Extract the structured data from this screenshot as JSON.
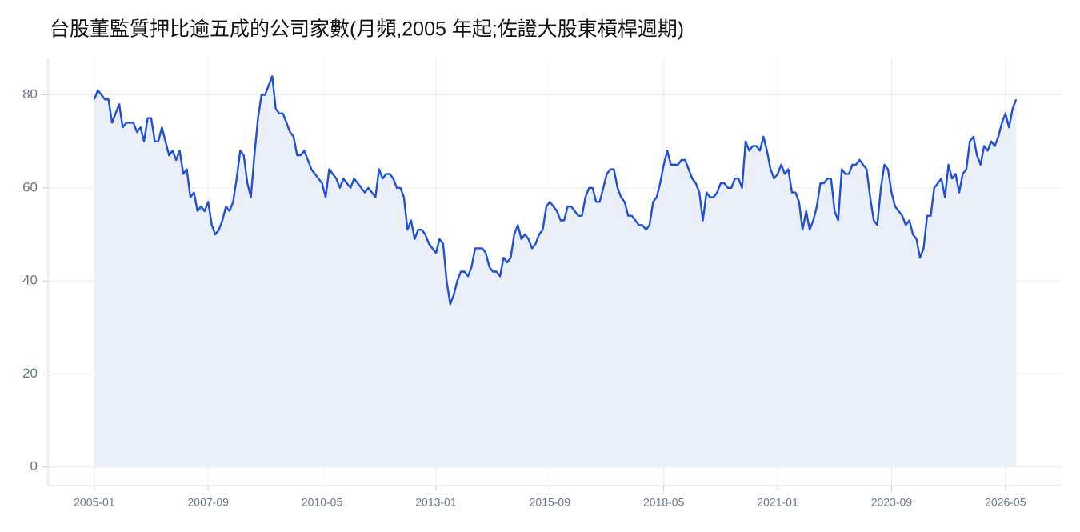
{
  "chart_data": {
    "type": "area",
    "title": "台股董監質押比逾五成的公司家數(月頻,2005 年起;佐證大股東槓桿週期)",
    "x": [
      "2005-01",
      "2005-02",
      "2005-03",
      "2005-04",
      "2005-05",
      "2005-06",
      "2005-07",
      "2005-08",
      "2005-09",
      "2005-10",
      "2005-11",
      "2005-12",
      "2006-01",
      "2006-02",
      "2006-03",
      "2006-04",
      "2006-05",
      "2006-06",
      "2006-07",
      "2006-08",
      "2006-09",
      "2006-10",
      "2006-11",
      "2006-12",
      "2007-01",
      "2007-02",
      "2007-03",
      "2007-04",
      "2007-05",
      "2007-06",
      "2007-07",
      "2007-08",
      "2007-09",
      "2007-10",
      "2007-11",
      "2007-12",
      "2008-01",
      "2008-02",
      "2008-03",
      "2008-04",
      "2008-05",
      "2008-06",
      "2008-07",
      "2008-08",
      "2008-09",
      "2008-10",
      "2008-11",
      "2008-12",
      "2009-01",
      "2009-02",
      "2009-03",
      "2009-04",
      "2009-05",
      "2009-06",
      "2009-07",
      "2009-08",
      "2009-09",
      "2009-10",
      "2009-11",
      "2009-12",
      "2010-01",
      "2010-02",
      "2010-03",
      "2010-04",
      "2010-05",
      "2010-06",
      "2010-07",
      "2010-08",
      "2010-09",
      "2010-10",
      "2010-11",
      "2010-12",
      "2011-01",
      "2011-02",
      "2011-03",
      "2011-04",
      "2011-05",
      "2011-06",
      "2011-07",
      "2011-08",
      "2011-09",
      "2011-10",
      "2011-11",
      "2011-12",
      "2012-01",
      "2012-02",
      "2012-03",
      "2012-04",
      "2012-05",
      "2012-06",
      "2012-07",
      "2012-08",
      "2012-09",
      "2012-10",
      "2012-11",
      "2012-12",
      "2013-01",
      "2013-02",
      "2013-03",
      "2013-04",
      "2013-05",
      "2013-06",
      "2013-07",
      "2013-08",
      "2013-09",
      "2013-10",
      "2013-11",
      "2013-12",
      "2014-01",
      "2014-02",
      "2014-03",
      "2014-04",
      "2014-05",
      "2014-06",
      "2014-07",
      "2014-08",
      "2014-09",
      "2014-10",
      "2014-11",
      "2014-12",
      "2015-01",
      "2015-02",
      "2015-03",
      "2015-04",
      "2015-05",
      "2015-06",
      "2015-07",
      "2015-08",
      "2015-09",
      "2015-10",
      "2015-11",
      "2015-12",
      "2016-01",
      "2016-02",
      "2016-03",
      "2016-04",
      "2016-05",
      "2016-06",
      "2016-07",
      "2016-08",
      "2016-09",
      "2016-10",
      "2016-11",
      "2016-12",
      "2017-01",
      "2017-02",
      "2017-03",
      "2017-04",
      "2017-05",
      "2017-06",
      "2017-07",
      "2017-08",
      "2017-09",
      "2017-10",
      "2017-11",
      "2017-12",
      "2018-01",
      "2018-02",
      "2018-03",
      "2018-04",
      "2018-05",
      "2018-06",
      "2018-07",
      "2018-08",
      "2018-09",
      "2018-10",
      "2018-11",
      "2018-12",
      "2019-01",
      "2019-02",
      "2019-03",
      "2019-04",
      "2019-05",
      "2019-06",
      "2019-07",
      "2019-08",
      "2019-09",
      "2019-10",
      "2019-11",
      "2019-12",
      "2020-01",
      "2020-02",
      "2020-03",
      "2020-04",
      "2020-05",
      "2020-06",
      "2020-07",
      "2020-08",
      "2020-09",
      "2020-10",
      "2020-11",
      "2020-12",
      "2021-01",
      "2021-02",
      "2021-03",
      "2021-04",
      "2021-05",
      "2021-06",
      "2021-07",
      "2021-08",
      "2021-09",
      "2021-10",
      "2021-11",
      "2021-12",
      "2022-01",
      "2022-02",
      "2022-03",
      "2022-04",
      "2022-05",
      "2022-06",
      "2022-07",
      "2022-08",
      "2022-09",
      "2022-10",
      "2022-11",
      "2022-12",
      "2023-01",
      "2023-02",
      "2023-03",
      "2023-04",
      "2023-05",
      "2023-06",
      "2023-07",
      "2023-08",
      "2023-09",
      "2023-10",
      "2023-11",
      "2023-12",
      "2024-01",
      "2024-02",
      "2024-03",
      "2024-04",
      "2024-05",
      "2024-06",
      "2024-07",
      "2024-08",
      "2024-09",
      "2024-10",
      "2024-11",
      "2024-12",
      "2025-01",
      "2025-02",
      "2025-03",
      "2025-04",
      "2025-05",
      "2025-06",
      "2025-07",
      "2025-08",
      "2025-09",
      "2025-10",
      "2025-11",
      "2025-12",
      "2026-01",
      "2026-02",
      "2026-03",
      "2026-04",
      "2026-05",
      "2026-06",
      "2026-07",
      "2026-08"
    ],
    "values": [
      79,
      81,
      80,
      79,
      79,
      74,
      76,
      78,
      73,
      74,
      74,
      74,
      72,
      73,
      70,
      75,
      75,
      70,
      70,
      73,
      70,
      67,
      68,
      66,
      68,
      63,
      64,
      58,
      59,
      55,
      56,
      55,
      57,
      52,
      50,
      51,
      53,
      56,
      55,
      57,
      62,
      68,
      67,
      61,
      58,
      67,
      75,
      80,
      80,
      82,
      84,
      77,
      76,
      76,
      74,
      72,
      71,
      67,
      67,
      68,
      66,
      64,
      63,
      62,
      61,
      58,
      64,
      63,
      62,
      60,
      62,
      61,
      60,
      62,
      61,
      60,
      59,
      60,
      59,
      58,
      64,
      62,
      63,
      63,
      62,
      60,
      60,
      58,
      51,
      53,
      49,
      51,
      51,
      50,
      48,
      47,
      46,
      49,
      48,
      40,
      35,
      37,
      40,
      42,
      42,
      41,
      43,
      47,
      47,
      47,
      46,
      43,
      42,
      42,
      41,
      45,
      44,
      45,
      50,
      52,
      49,
      50,
      49,
      47,
      48,
      50,
      51,
      56,
      57,
      56,
      55,
      53,
      53,
      56,
      56,
      55,
      54,
      54,
      58,
      60,
      60,
      57,
      57,
      60,
      63,
      64,
      64,
      60,
      58,
      57,
      54,
      54,
      53,
      52,
      52,
      51,
      52,
      57,
      58,
      61,
      65,
      68,
      65,
      65,
      65,
      66,
      66,
      64,
      62,
      61,
      59,
      53,
      59,
      58,
      58,
      59,
      61,
      61,
      60,
      60,
      62,
      62,
      60,
      70,
      68,
      69,
      69,
      68,
      71,
      68,
      64,
      62,
      63,
      65,
      63,
      64,
      59,
      59,
      57,
      51,
      55,
      51,
      53,
      56,
      61,
      61,
      62,
      62,
      55,
      53,
      64,
      63,
      63,
      65,
      65,
      66,
      65,
      64,
      58,
      53,
      52,
      60,
      65,
      64,
      59,
      56,
      55,
      54,
      52,
      53,
      50,
      49,
      45,
      47,
      54,
      54,
      60,
      61,
      62,
      58,
      65,
      62,
      63,
      59,
      63,
      64,
      70,
      71,
      67,
      65,
      69,
      68,
      70,
      69,
      71,
      74,
      76,
      73,
      77,
      79
    ],
    "color": "#2150d8",
    "fill": "#eaeffa",
    "xlim": [
      "2003-12",
      "2027-09"
    ],
    "xticks": [
      "2005-01",
      "2007-09",
      "2010-05",
      "2013-01",
      "2015-09",
      "2018-05",
      "2021-01",
      "2023-09",
      "2026-05"
    ],
    "ylim": [
      -4,
      88
    ],
    "yticks": [
      0,
      20,
      40,
      60,
      80
    ],
    "grid": true
  }
}
